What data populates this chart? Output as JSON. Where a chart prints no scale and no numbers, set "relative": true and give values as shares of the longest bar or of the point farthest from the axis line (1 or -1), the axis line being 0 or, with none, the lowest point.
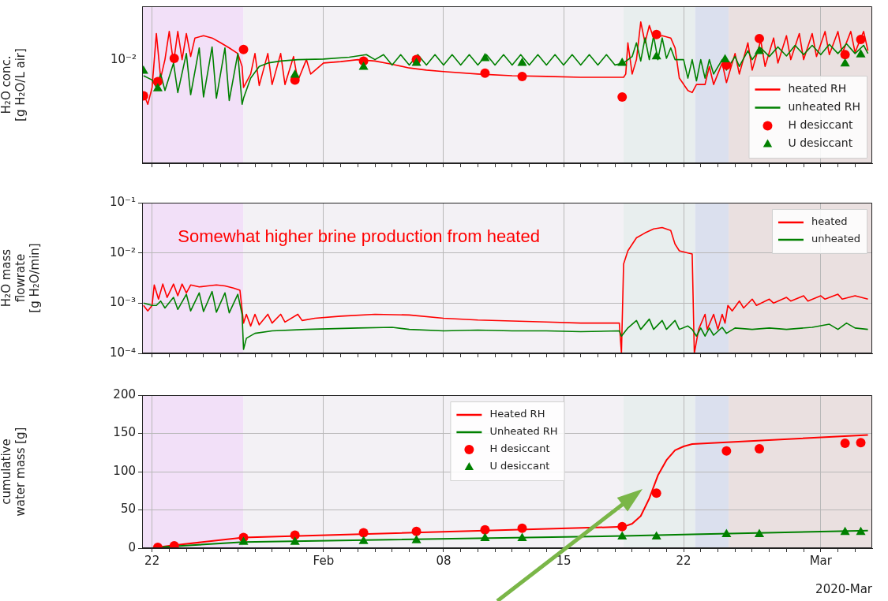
{
  "chart_data": [
    {
      "type": "line",
      "ylabel": "H₂O conc.\n[g H₂O/L air]",
      "relative": true,
      "grid": "x",
      "legend": "bottom right",
      "tick_labels": false,
      "annotations": [
        "10⁻²"
      ],
      "xlim": [
        "2020-01-21T10:00",
        "2020-03-04T00:00"
      ],
      "xticks": [
        {
          "value": "2020-01-22"
        },
        {
          "value": "2020-01-23",
          "label": null
        },
        {
          "value": "2020-01-24",
          "label": null
        },
        {
          "value": "2020-01-25",
          "label": null
        },
        {
          "value": "2020-01-26",
          "label": null
        },
        {
          "value": "2020-01-27",
          "label": null
        },
        {
          "value": "2020-01-28",
          "label": null
        },
        {
          "value": "2020-01-29",
          "label": null
        },
        {
          "value": "2020-01-30",
          "label": null
        },
        {
          "value": "2020-01-31",
          "label": null
        },
        {
          "value": "2020-02-01"
        },
        {
          "value": "2020-02-02",
          "label": null
        },
        {
          "value": "2020-02-03",
          "label": null
        },
        {
          "value": "2020-02-04",
          "label": null
        },
        {
          "value": "2020-02-05",
          "label": null
        },
        {
          "value": "2020-02-06",
          "label": null
        },
        {
          "value": "2020-02-07",
          "label": null
        },
        {
          "value": "2020-02-08"
        },
        {
          "value": "2020-02-09",
          "label": null
        },
        {
          "value": "2020-02-10",
          "label": null
        },
        {
          "value": "2020-02-11",
          "label": null
        },
        {
          "value": "2020-02-12",
          "label": null
        },
        {
          "value": "2020-02-13",
          "label": null
        },
        {
          "value": "2020-02-14",
          "label": null
        },
        {
          "value": "2020-02-15"
        },
        {
          "value": "2020-02-16",
          "label": null
        },
        {
          "value": "2020-02-17",
          "label": null
        },
        {
          "value": "2020-02-18",
          "label": null
        },
        {
          "value": "2020-02-19",
          "label": null
        },
        {
          "value": "2020-02-20",
          "label": null
        },
        {
          "value": "2020-02-21",
          "label": null
        },
        {
          "value": "2020-02-22"
        },
        {
          "value": "2020-02-23",
          "label": null
        },
        {
          "value": "2020-02-24",
          "label": null
        },
        {
          "value": "2020-02-25",
          "label": null
        },
        {
          "value": "2020-02-26",
          "label": null
        },
        {
          "value": "2020-02-27",
          "label": null
        },
        {
          "value": "2020-02-28",
          "label": null
        },
        {
          "value": "2020-02-29",
          "label": null
        },
        {
          "value": "2020-03-01"
        },
        {
          "value": "2020-03-02",
          "label": null
        },
        {
          "value": "2020-03-03",
          "label": null
        }
      ],
      "bands": [
        {
          "axis": "x",
          "from": "2020-01-21T10:00",
          "to": "2020-01-27T08:00",
          "color": "#f2e0f8"
        },
        {
          "axis": "x",
          "from": "2020-01-27T08:00",
          "to": "2020-02-18T12:00",
          "color": "#f3f1f5"
        },
        {
          "axis": "x",
          "from": "2020-02-18T12:00",
          "to": "2020-02-22T16:00",
          "color": "#e8eeee"
        },
        {
          "axis": "x",
          "from": "2020-02-22T16:00",
          "to": "2020-02-24T15:00",
          "color": "#dbe0ee"
        },
        {
          "axis": "x",
          "from": "2020-02-24T15:00",
          "to": "2020-03-04T00:00",
          "color": "#eae0e0"
        }
      ],
      "series": [
        {
          "name": "heated RH",
          "type": "line",
          "color": "#ff0000",
          "x": [
            "2020-01-21T12:00",
            "2020-01-21T18:00",
            "2020-01-22T00:00",
            "2020-01-22T06:00",
            "2020-01-22T12:00",
            "2020-01-22T18:00",
            "2020-01-23T00:00",
            "2020-01-23T06:00",
            "2020-01-23T12:00",
            "2020-01-23T18:00",
            "2020-01-24T00:00",
            "2020-01-24T06:00",
            "2020-01-24T12:00",
            "2020-01-25T00:00",
            "2020-01-25T12:00",
            "2020-01-26T00:00",
            "2020-01-26T12:00",
            "2020-01-27T00:00",
            "2020-01-27T06:00",
            "2020-01-27T08:00",
            "2020-01-27T18:00",
            "2020-01-28T00:00",
            "2020-01-28T06:00",
            "2020-01-28T18:00",
            "2020-01-29T00:00",
            "2020-01-29T12:00",
            "2020-01-29T18:00",
            "2020-01-30T06:00",
            "2020-01-30T12:00",
            "2020-01-31T00:00",
            "2020-01-31T06:00",
            "2020-02-01T00:00",
            "2020-02-02T00:00",
            "2020-02-03T00:00",
            "2020-02-04T00:00",
            "2020-02-05T00:00",
            "2020-02-06T00:00",
            "2020-02-07T00:00",
            "2020-02-08T00:00",
            "2020-02-10T00:00",
            "2020-02-12T00:00",
            "2020-02-14T00:00",
            "2020-02-16T00:00",
            "2020-02-18T12:00",
            "2020-02-18T15:00",
            "2020-02-18T18:00",
            "2020-02-19T00:00",
            "2020-02-19T06:00",
            "2020-02-19T12:00",
            "2020-02-19T18:00",
            "2020-02-20T00:00",
            "2020-02-20T06:00",
            "2020-02-20T18:00",
            "2020-02-21T06:00",
            "2020-02-21T12:00",
            "2020-02-21T18:00",
            "2020-02-22T06:00",
            "2020-02-22T12:00",
            "2020-02-22T18:00",
            "2020-02-23T06:00",
            "2020-02-23T12:00",
            "2020-02-23T18:00",
            "2020-02-24T06:00",
            "2020-02-24T12:00",
            "2020-02-25T00:00",
            "2020-02-25T06:00",
            "2020-02-25T18:00",
            "2020-02-26T00:00",
            "2020-02-26T12:00",
            "2020-02-26T18:00",
            "2020-02-27T06:00",
            "2020-02-27T12:00",
            "2020-02-28T00:00",
            "2020-02-28T06:00",
            "2020-02-28T18:00",
            "2020-02-29T00:00",
            "2020-02-29T12:00",
            "2020-02-29T18:00",
            "2020-03-01T06:00",
            "2020-03-01T12:00",
            "2020-03-02T00:00",
            "2020-03-02T06:00",
            "2020-03-02T18:00",
            "2020-03-03T00:00",
            "2020-03-03T12:00",
            "2020-03-03T18:00"
          ],
          "values": [
            0.492,
            0.417,
            0.536,
            0.917,
            0.602,
            0.733,
            0.932,
            0.709,
            0.932,
            0.733,
            0.917,
            0.755,
            0.886,
            0.902,
            0.886,
            0.852,
            0.816,
            0.776,
            0.685,
            0.536,
            0.631,
            0.776,
            0.55,
            0.776,
            0.557,
            0.776,
            0.557,
            0.755,
            0.583,
            0.733,
            0.631,
            0.709,
            0.719,
            0.733,
            0.723,
            0.7,
            0.674,
            0.659,
            0.648,
            0.631,
            0.619,
            0.614,
            0.608,
            0.608,
            0.631,
            0.852,
            0.631,
            0.733,
            1,
            0.852,
            0.974,
            0.886,
            0.902,
            0.886,
            0.816,
            0.602,
            0.515,
            0.5,
            0.557,
            0.557,
            0.685,
            0.557,
            0.709,
            0.57,
            0.776,
            0.631,
            0.852,
            0.659,
            0.869,
            0.685,
            0.886,
            0.709,
            0.902,
            0.733,
            0.917,
            0.733,
            0.917,
            0.755,
            0.932,
            0.768,
            0.932,
            0.776,
            0.932,
            0.784,
            0.932,
            0.796
          ]
        },
        {
          "name": "unheated RH",
          "type": "line",
          "color": "#008000",
          "x": [
            "2020-01-21T12:00",
            "2020-01-22T00:00",
            "2020-01-22T06:00",
            "2020-01-22T12:00",
            "2020-01-22T18:00",
            "2020-01-23T06:00",
            "2020-01-23T12:00",
            "2020-01-24T00:00",
            "2020-01-24T06:00",
            "2020-01-24T18:00",
            "2020-01-25T00:00",
            "2020-01-25T12:00",
            "2020-01-25T18:00",
            "2020-01-26T06:00",
            "2020-01-26T12:00",
            "2020-01-27T00:00",
            "2020-01-27T06:00",
            "2020-01-27T08:00",
            "2020-01-27T18:00",
            "2020-01-28T06:00",
            "2020-01-28T18:00",
            "2020-01-29T12:00",
            "2020-01-30T12:00",
            "2020-02-01T00:00",
            "2020-02-02T12:00",
            "2020-02-03T12:00",
            "2020-02-04T00:00",
            "2020-02-04T12:00",
            "2020-02-05T00:00",
            "2020-02-05T12:00",
            "2020-02-06T00:00",
            "2020-02-06T12:00",
            "2020-02-07T00:00",
            "2020-02-07T12:00",
            "2020-02-08T00:00",
            "2020-02-08T12:00",
            "2020-02-09T00:00",
            "2020-02-09T12:00",
            "2020-02-10T00:00",
            "2020-02-10T12:00",
            "2020-02-11T00:00",
            "2020-02-11T12:00",
            "2020-02-12T00:00",
            "2020-02-12T12:00",
            "2020-02-13T00:00",
            "2020-02-13T12:00",
            "2020-02-14T00:00",
            "2020-02-14T12:00",
            "2020-02-15T00:00",
            "2020-02-15T12:00",
            "2020-02-16T00:00",
            "2020-02-16T12:00",
            "2020-02-17T00:00",
            "2020-02-17T12:00",
            "2020-02-18T00:00",
            "2020-02-18T12:00",
            "2020-02-19T00:00",
            "2020-02-19T06:00",
            "2020-02-19T12:00",
            "2020-02-19T18:00",
            "2020-02-20T00:00",
            "2020-02-20T06:00",
            "2020-02-20T12:00",
            "2020-02-20T18:00",
            "2020-02-21T00:00",
            "2020-02-21T06:00",
            "2020-02-21T12:00",
            "2020-02-22T00:00",
            "2020-02-22T06:00",
            "2020-02-22T12:00",
            "2020-02-22T18:00",
            "2020-02-23T00:00",
            "2020-02-23T06:00",
            "2020-02-23T12:00",
            "2020-02-23T18:00",
            "2020-02-24T06:00",
            "2020-02-24T12:00",
            "2020-02-25T00:00",
            "2020-02-25T06:00",
            "2020-02-25T18:00",
            "2020-02-26T00:00",
            "2020-02-26T12:00",
            "2020-02-27T00:00",
            "2020-02-27T12:00",
            "2020-02-28T00:00",
            "2020-02-28T12:00",
            "2020-02-29T00:00",
            "2020-02-29T12:00",
            "2020-03-01T00:00",
            "2020-03-01T12:00",
            "2020-03-02T00:00",
            "2020-03-02T12:00",
            "2020-03-03T00:00",
            "2020-03-03T12:00",
            "2020-03-03T18:00"
          ],
          "values": [
            0.619,
            0.589,
            0.536,
            0.631,
            0.515,
            0.709,
            0.5,
            0.776,
            0.485,
            0.816,
            0.469,
            0.823,
            0.46,
            0.816,
            0.444,
            0.776,
            0.417,
            0.46,
            0.602,
            0.685,
            0.709,
            0.723,
            0.733,
            0.737,
            0.75,
            0.768,
            0.733,
            0.768,
            0.695,
            0.768,
            0.695,
            0.768,
            0.695,
            0.768,
            0.695,
            0.768,
            0.695,
            0.768,
            0.695,
            0.768,
            0.695,
            0.768,
            0.695,
            0.768,
            0.695,
            0.768,
            0.695,
            0.768,
            0.695,
            0.768,
            0.695,
            0.768,
            0.695,
            0.768,
            0.695,
            0.709,
            0.755,
            0.852,
            0.723,
            0.886,
            0.733,
            0.902,
            0.733,
            0.886,
            0.742,
            0.816,
            0.733,
            0.733,
            0.602,
            0.733,
            0.583,
            0.733,
            0.602,
            0.733,
            0.631,
            0.733,
            0.659,
            0.755,
            0.685,
            0.796,
            0.733,
            0.816,
            0.755,
            0.823,
            0.759,
            0.834,
            0.768,
            0.834,
            0.768,
            0.841,
            0.776,
            0.845,
            0.776,
            0.834,
            0.776
          ]
        },
        {
          "name": "H desiccant",
          "type": "scatter",
          "marker": "circle",
          "color": "#ff0000",
          "x": [
            "2020-01-21T12:00",
            "2020-01-22T08:00",
            "2020-01-23T07:00",
            "2020-01-27T08:00",
            "2020-01-30T08:00",
            "2020-02-03T08:00",
            "2020-02-06T10:00",
            "2020-02-10T10:00",
            "2020-02-12T14:00",
            "2020-02-18T10:00",
            "2020-02-20T10:00",
            "2020-02-24T12:00",
            "2020-02-26T10:00",
            "2020-03-02T10:00",
            "2020-03-03T08:00"
          ],
          "values": [
            0.477,
            0.577,
            0.742,
            0.804,
            0.589,
            0.723,
            0.733,
            0.637,
            0.614,
            0.469,
            0.911,
            0.695,
            0.882,
            0.768,
            0.876
          ]
        },
        {
          "name": "U desiccant",
          "type": "scatter",
          "marker": "triangle",
          "color": "#008000",
          "x": [
            "2020-01-21T12:00",
            "2020-01-22T08:00",
            "2020-01-30T08:00",
            "2020-02-03T08:00",
            "2020-02-06T10:00",
            "2020-02-10T10:00",
            "2020-02-12T14:00",
            "2020-02-18T10:00",
            "2020-02-20T10:00",
            "2020-02-24T10:00",
            "2020-02-26T10:00",
            "2020-03-02T10:00",
            "2020-03-03T08:00"
          ],
          "values": [
            0.653,
            0.529,
            0.625,
            0.68,
            0.709,
            0.742,
            0.709,
            0.709,
            0.755,
            0.733,
            0.792,
            0.704,
            0.768
          ]
        }
      ]
    },
    {
      "type": "line",
      "ylabel": "H₂O mass\nflowrate\n[g H₂O/min]",
      "log": "y",
      "grid": true,
      "legend": "top right",
      "tick_labels": "y",
      "annotations": [
        "Somewhat higher brine production from heated"
      ],
      "xlim": [
        "2020-01-21T10:00",
        "2020-03-04T00:00"
      ],
      "xticks": [
        {
          "value": "2020-01-22"
        },
        {
          "value": "2020-01-23",
          "label": null
        },
        {
          "value": "2020-01-24",
          "label": null
        },
        {
          "value": "2020-01-25",
          "label": null
        },
        {
          "value": "2020-01-26",
          "label": null
        },
        {
          "value": "2020-01-27",
          "label": null
        },
        {
          "value": "2020-01-28",
          "label": null
        },
        {
          "value": "2020-01-29",
          "label": null
        },
        {
          "value": "2020-01-30",
          "label": null
        },
        {
          "value": "2020-01-31",
          "label": null
        },
        {
          "value": "2020-02-01"
        },
        {
          "value": "2020-02-02",
          "label": null
        },
        {
          "value": "2020-02-03",
          "label": null
        },
        {
          "value": "2020-02-04",
          "label": null
        },
        {
          "value": "2020-02-05",
          "label": null
        },
        {
          "value": "2020-02-06",
          "label": null
        },
        {
          "value": "2020-02-07",
          "label": null
        },
        {
          "value": "2020-02-08"
        },
        {
          "value": "2020-02-09",
          "label": null
        },
        {
          "value": "2020-02-10",
          "label": null
        },
        {
          "value": "2020-02-11",
          "label": null
        },
        {
          "value": "2020-02-12",
          "label": null
        },
        {
          "value": "2020-02-13",
          "label": null
        },
        {
          "value": "2020-02-14",
          "label": null
        },
        {
          "value": "2020-02-15"
        },
        {
          "value": "2020-02-16",
          "label": null
        },
        {
          "value": "2020-02-17",
          "label": null
        },
        {
          "value": "2020-02-18",
          "label": null
        },
        {
          "value": "2020-02-19",
          "label": null
        },
        {
          "value": "2020-02-20",
          "label": null
        },
        {
          "value": "2020-02-21",
          "label": null
        },
        {
          "value": "2020-02-22"
        },
        {
          "value": "2020-02-23",
          "label": null
        },
        {
          "value": "2020-02-24",
          "label": null
        },
        {
          "value": "2020-02-25",
          "label": null
        },
        {
          "value": "2020-02-26",
          "label": null
        },
        {
          "value": "2020-02-27",
          "label": null
        },
        {
          "value": "2020-02-28",
          "label": null
        },
        {
          "value": "2020-02-29",
          "label": null
        },
        {
          "value": "2020-03-01"
        },
        {
          "value": "2020-03-02",
          "label": null
        },
        {
          "value": "2020-03-03",
          "label": null
        }
      ],
      "ylim": [
        0.0001,
        0.1
      ],
      "yticks": [
        {
          "value": 0.0001,
          "label": "10⁻⁴"
        },
        {
          "value": 0.001,
          "label": "10⁻³"
        },
        {
          "value": 0.01,
          "label": "10⁻²"
        },
        {
          "value": 0.1,
          "label": "10⁻¹"
        }
      ],
      "bands": [
        {
          "axis": "x",
          "from": "2020-01-21T10:00",
          "to": "2020-01-27T08:00",
          "color": "#f2e0f8"
        },
        {
          "axis": "x",
          "from": "2020-01-27T08:00",
          "to": "2020-02-18T12:00",
          "color": "#f3f1f5"
        },
        {
          "axis": "x",
          "from": "2020-02-18T12:00",
          "to": "2020-02-22T16:00",
          "color": "#e8eeee"
        },
        {
          "axis": "x",
          "from": "2020-02-22T16:00",
          "to": "2020-02-24T15:00",
          "color": "#dbe0ee"
        },
        {
          "axis": "x",
          "from": "2020-02-24T15:00",
          "to": "2020-03-04T00:00",
          "color": "#eae0e0"
        }
      ],
      "series": [
        {
          "name": "heated",
          "type": "line",
          "color": "#ff0000",
          "x": [
            "2020-01-21T12:00",
            "2020-01-21T18:00",
            "2020-01-22T00:00",
            "2020-01-22T03:00",
            "2020-01-22T09:00",
            "2020-01-22T15:00",
            "2020-01-22T21:00",
            "2020-01-23T06:00",
            "2020-01-23T12:00",
            "2020-01-23T18:00",
            "2020-01-24T00:00",
            "2020-01-24T06:00",
            "2020-01-24T18:00",
            "2020-01-25T06:00",
            "2020-01-25T18:00",
            "2020-01-26T06:00",
            "2020-01-26T18:00",
            "2020-01-27T03:00",
            "2020-01-27T08:00",
            "2020-01-27T12:00",
            "2020-01-27T18:00",
            "2020-01-28T00:00",
            "2020-01-28T06:00",
            "2020-01-28T18:00",
            "2020-01-29T00:00",
            "2020-01-29T12:00",
            "2020-01-29T18:00",
            "2020-01-30T12:00",
            "2020-01-30T18:00",
            "2020-01-31T12:00",
            "2020-02-02T00:00",
            "2020-02-04T00:00",
            "2020-02-06T00:00",
            "2020-02-08T00:00",
            "2020-02-10T00:00",
            "2020-02-12T00:00",
            "2020-02-14T00:00",
            "2020-02-16T00:00",
            "2020-02-18T06:00",
            "2020-02-18T09:00",
            "2020-02-18T12:00",
            "2020-02-18T18:00",
            "2020-02-19T06:00",
            "2020-02-19T18:00",
            "2020-02-20T06:00",
            "2020-02-20T18:00",
            "2020-02-21T06:00",
            "2020-02-21T12:00",
            "2020-02-21T18:00",
            "2020-02-22T06:00",
            "2020-02-22T12:00",
            "2020-02-22T15:00",
            "2020-02-22T21:00",
            "2020-02-23T06:00",
            "2020-02-23T09:00",
            "2020-02-23T18:00",
            "2020-02-24T00:00",
            "2020-02-24T06:00",
            "2020-02-24T10:00",
            "2020-02-24T14:00",
            "2020-02-24T20:00",
            "2020-02-25T06:00",
            "2020-02-25T12:00",
            "2020-02-26T00:00",
            "2020-02-26T06:00",
            "2020-02-27T00:00",
            "2020-02-27T06:00",
            "2020-02-28T00:00",
            "2020-02-28T06:00",
            "2020-02-29T00:00",
            "2020-02-29T06:00",
            "2020-03-01T00:00",
            "2020-03-01T06:00",
            "2020-03-02T00:00",
            "2020-03-02T06:00",
            "2020-03-03T00:00",
            "2020-03-03T18:00"
          ],
          "values": [
            0.0009,
            0.0007,
            0.0009,
            0.0023,
            0.0012,
            0.0024,
            0.0013,
            0.0024,
            0.0014,
            0.0024,
            0.0016,
            0.0023,
            0.0021,
            0.0022,
            0.0023,
            0.0022,
            0.002,
            0.0018,
            0.0004,
            0.0006,
            0.00035,
            0.0006,
            0.00037,
            0.0006,
            0.0004,
            0.0006,
            0.00042,
            0.0006,
            0.00045,
            0.0005,
            0.00055,
            0.0006,
            0.00058,
            0.0005,
            0.00046,
            0.00044,
            0.00042,
            0.0004,
            0.0004,
            0.0001,
            0.006,
            0.011,
            0.02,
            0.025,
            0.03,
            0.032,
            0.028,
            0.015,
            0.011,
            0.01,
            0.0095,
            0.0001,
            0.0003,
            0.0006,
            0.0003,
            0.0006,
            0.0003,
            0.0006,
            0.0004,
            0.0009,
            0.0007,
            0.0011,
            0.0008,
            0.0012,
            0.0009,
            0.0012,
            0.001,
            0.0013,
            0.0011,
            0.0014,
            0.0011,
            0.0014,
            0.0012,
            0.0015,
            0.0012,
            0.0014,
            0.0012
          ]
        },
        {
          "name": "unheated",
          "type": "line",
          "color": "#008000",
          "x": [
            "2020-01-21T12:00",
            "2020-01-22T00:00",
            "2020-01-22T06:00",
            "2020-01-22T12:00",
            "2020-01-22T18:00",
            "2020-01-23T06:00",
            "2020-01-23T12:00",
            "2020-01-24T00:00",
            "2020-01-24T06:00",
            "2020-01-24T18:00",
            "2020-01-25T00:00",
            "2020-01-25T12:00",
            "2020-01-25T18:00",
            "2020-01-26T06:00",
            "2020-01-26T12:00",
            "2020-01-27T00:00",
            "2020-01-27T06:00",
            "2020-01-27T08:00",
            "2020-01-27T12:00",
            "2020-01-28T00:00",
            "2020-01-29T00:00",
            "2020-01-31T00:00",
            "2020-02-03T00:00",
            "2020-02-05T00:00",
            "2020-02-06T00:00",
            "2020-02-08T00:00",
            "2020-02-10T00:00",
            "2020-02-12T00:00",
            "2020-02-14T00:00",
            "2020-02-16T00:00",
            "2020-02-18T06:00",
            "2020-02-18T09:00",
            "2020-02-18T18:00",
            "2020-02-19T06:00",
            "2020-02-19T12:00",
            "2020-02-20T00:00",
            "2020-02-20T06:00",
            "2020-02-20T18:00",
            "2020-02-21T00:00",
            "2020-02-21T12:00",
            "2020-02-21T18:00",
            "2020-02-22T06:00",
            "2020-02-22T12:00",
            "2020-02-22T18:00",
            "2020-02-23T00:00",
            "2020-02-23T06:00",
            "2020-02-23T12:00",
            "2020-02-23T18:00",
            "2020-02-24T06:00",
            "2020-02-24T12:00",
            "2020-02-25T00:00",
            "2020-02-26T00:00",
            "2020-02-27T00:00",
            "2020-02-28T00:00",
            "2020-02-29T12:00",
            "2020-03-01T12:00",
            "2020-03-02T00:00",
            "2020-03-02T12:00",
            "2020-03-03T00:00",
            "2020-03-03T18:00"
          ],
          "values": [
            0.001,
            0.0009,
            0.0009,
            0.0011,
            0.0008,
            0.0013,
            0.00075,
            0.0015,
            0.0007,
            0.0016,
            0.00068,
            0.0017,
            0.00066,
            0.0016,
            0.00064,
            0.0015,
            0.0006,
            0.00012,
            0.0002,
            0.00025,
            0.00028,
            0.0003,
            0.00032,
            0.00033,
            0.0003,
            0.00028,
            0.00029,
            0.00028,
            0.00028,
            0.00027,
            0.00028,
            0.00022,
            0.00032,
            0.00045,
            0.0003,
            0.00048,
            0.0003,
            0.00045,
            0.0003,
            0.00045,
            0.0003,
            0.00035,
            0.0003,
            0.00022,
            0.00032,
            0.00022,
            0.00032,
            0.00023,
            0.00033,
            0.00025,
            0.00032,
            0.0003,
            0.00032,
            0.0003,
            0.00033,
            0.00038,
            0.0003,
            0.0004,
            0.00032,
            0.0003
          ]
        }
      ]
    },
    {
      "type": "line",
      "ylabel": "cumulative\nwater mass [g]",
      "grid": true,
      "legend": "top",
      "annotations": [
        "2020-Mar"
      ],
      "xlim": [
        "2020-01-21T10:00",
        "2020-03-04T00:00"
      ],
      "xticks": [
        {
          "value": "2020-01-22",
          "label": "22"
        },
        {
          "value": "2020-01-23",
          "label": null
        },
        {
          "value": "2020-01-24",
          "label": null
        },
        {
          "value": "2020-01-25",
          "label": null
        },
        {
          "value": "2020-01-26",
          "label": null
        },
        {
          "value": "2020-01-27",
          "label": null
        },
        {
          "value": "2020-01-28",
          "label": null
        },
        {
          "value": "2020-01-29",
          "label": null
        },
        {
          "value": "2020-01-30",
          "label": null
        },
        {
          "value": "2020-01-31",
          "label": null
        },
        {
          "value": "2020-02-01",
          "label": "Feb"
        },
        {
          "value": "2020-02-02",
          "label": null
        },
        {
          "value": "2020-02-03",
          "label": null
        },
        {
          "value": "2020-02-04",
          "label": null
        },
        {
          "value": "2020-02-05",
          "label": null
        },
        {
          "value": "2020-02-06",
          "label": null
        },
        {
          "value": "2020-02-07",
          "label": null
        },
        {
          "value": "2020-02-08",
          "label": "08"
        },
        {
          "value": "2020-02-09",
          "label": null
        },
        {
          "value": "2020-02-10",
          "label": null
        },
        {
          "value": "2020-02-11",
          "label": null
        },
        {
          "value": "2020-02-12",
          "label": null
        },
        {
          "value": "2020-02-13",
          "label": null
        },
        {
          "value": "2020-02-14",
          "label": null
        },
        {
          "value": "2020-02-15",
          "label": "15"
        },
        {
          "value": "2020-02-16",
          "label": null
        },
        {
          "value": "2020-02-17",
          "label": null
        },
        {
          "value": "2020-02-18",
          "label": null
        },
        {
          "value": "2020-02-19",
          "label": null
        },
        {
          "value": "2020-02-20",
          "label": null
        },
        {
          "value": "2020-02-21",
          "label": null
        },
        {
          "value": "2020-02-22",
          "label": "22"
        },
        {
          "value": "2020-02-23",
          "label": null
        },
        {
          "value": "2020-02-24",
          "label": null
        },
        {
          "value": "2020-02-25",
          "label": null
        },
        {
          "value": "2020-02-26",
          "label": null
        },
        {
          "value": "2020-02-27",
          "label": null
        },
        {
          "value": "2020-02-28",
          "label": null
        },
        {
          "value": "2020-02-29",
          "label": null
        },
        {
          "value": "2020-03-01",
          "label": "Mar"
        },
        {
          "value": "2020-03-02",
          "label": null
        },
        {
          "value": "2020-03-03",
          "label": null
        }
      ],
      "ylim": [
        0,
        200
      ],
      "yticks": [
        0,
        50,
        100,
        150,
        200
      ],
      "bands": [
        {
          "axis": "x",
          "from": "2020-01-21T10:00",
          "to": "2020-01-27T08:00",
          "color": "#f2e0f8"
        },
        {
          "axis": "x",
          "from": "2020-01-27T08:00",
          "to": "2020-02-18T12:00",
          "color": "#f3f1f5"
        },
        {
          "axis": "x",
          "from": "2020-02-18T12:00",
          "to": "2020-02-22T16:00",
          "color": "#e8eeee"
        },
        {
          "axis": "x",
          "from": "2020-02-22T16:00",
          "to": "2020-02-24T15:00",
          "color": "#dbe0ee"
        },
        {
          "axis": "x",
          "from": "2020-02-24T15:00",
          "to": "2020-03-04T00:00",
          "color": "#eae0e0"
        }
      ],
      "series": [
        {
          "name": "Heated RH",
          "type": "line",
          "color": "#ff0000",
          "x": [
            "2020-01-22T00:00",
            "2020-01-23T00:00",
            "2020-01-27T08:00",
            "2020-02-18T12:00",
            "2020-02-19T00:00",
            "2020-02-19T12:00",
            "2020-02-20T00:00",
            "2020-02-20T12:00",
            "2020-02-21T00:00",
            "2020-02-21T12:00",
            "2020-02-22T00:00",
            "2020-02-22T12:00",
            "2020-03-03T18:00"
          ],
          "values": [
            0,
            3,
            14,
            28,
            32,
            42,
            65,
            95,
            115,
            128,
            133,
            136,
            148
          ]
        },
        {
          "name": "Unheated RH",
          "type": "line",
          "color": "#008000",
          "x": [
            "2020-01-22T00:00",
            "2020-01-23T00:00",
            "2020-01-27T08:00",
            "2020-02-18T12:00",
            "2020-02-22T12:00",
            "2020-03-03T18:00"
          ],
          "values": [
            0,
            2,
            8,
            16,
            18,
            23
          ]
        },
        {
          "name": "H desiccant",
          "type": "scatter",
          "marker": "circle",
          "color": "#ff0000",
          "x": [
            "2020-01-22T08:00",
            "2020-01-23T07:00",
            "2020-01-27T08:00",
            "2020-01-30T08:00",
            "2020-02-03T08:00",
            "2020-02-06T10:00",
            "2020-02-10T10:00",
            "2020-02-12T14:00",
            "2020-02-18T10:00",
            "2020-02-20T10:00",
            "2020-02-24T12:00",
            "2020-02-26T10:00",
            "2020-03-02T10:00",
            "2020-03-03T08:00"
          ],
          "values": [
            1,
            3,
            14,
            17,
            20,
            22,
            24,
            26,
            28,
            72,
            127,
            130,
            137,
            138
          ]
        },
        {
          "name": "U desiccant",
          "type": "scatter",
          "marker": "triangle",
          "color": "#008000",
          "x": [
            "2020-01-27T08:00",
            "2020-01-30T08:00",
            "2020-02-03T08:00",
            "2020-02-06T10:00",
            "2020-02-10T10:00",
            "2020-02-12T14:00",
            "2020-02-18T10:00",
            "2020-02-20T10:00",
            "2020-02-24T12:00",
            "2020-02-26T10:00",
            "2020-03-02T10:00",
            "2020-03-03T08:00"
          ],
          "values": [
            8,
            8,
            9,
            10,
            13,
            13,
            15,
            15,
            18,
            18,
            21,
            21
          ]
        }
      ]
    }
  ]
}
